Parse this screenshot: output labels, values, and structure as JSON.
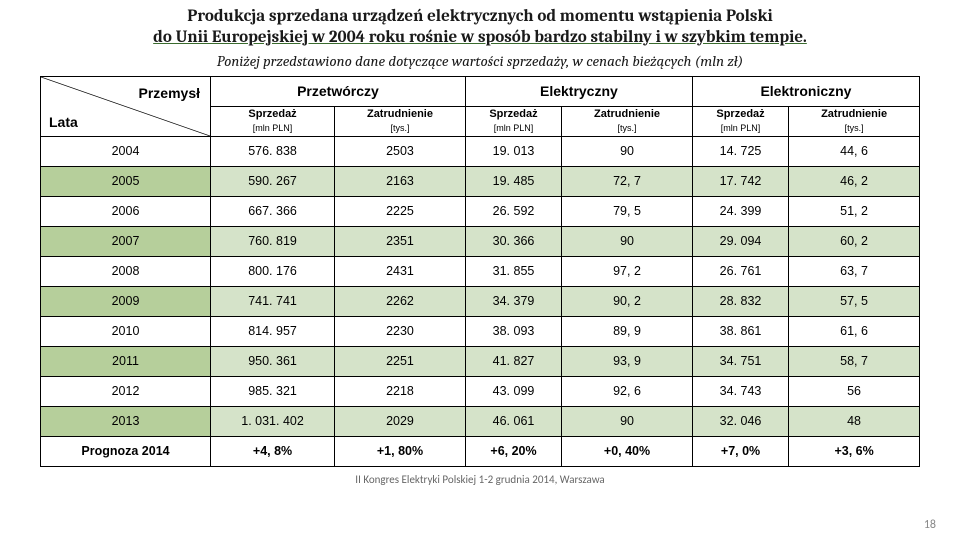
{
  "title_line1": "Produkcja sprzedana urządzeń elektrycznych od momentu wstąpienia Polski",
  "title_line2": "do Unii Europejskiej w 2004 roku rośnie w sposób bardzo stabilny i w szybkim tempie.",
  "subtitle": "Poniżej przedstawiono dane dotyczące wartości sprzedaży, w cenach bieżących (mln zł)",
  "diag_top": "Przemysł",
  "diag_bot": "Lata",
  "groups": [
    "Przetwórczy",
    "Elektryczny",
    "Elektroniczny"
  ],
  "sub_sales": "Sprzedaż",
  "sub_emp": "Zatrudnienie",
  "unit_sales": "[mln PLN]",
  "unit_emp": "[tys.]",
  "rows": [
    {
      "y": "2004",
      "v": [
        "576. 838",
        "2503",
        "19. 013",
        "90",
        "14. 725",
        "44, 6"
      ]
    },
    {
      "y": "2005",
      "v": [
        "590. 267",
        "2163",
        "19. 485",
        "72, 7",
        "17. 742",
        "46, 2"
      ]
    },
    {
      "y": "2006",
      "v": [
        "667. 366",
        "2225",
        "26. 592",
        "79, 5",
        "24. 399",
        "51, 2"
      ]
    },
    {
      "y": "2007",
      "v": [
        "760. 819",
        "2351",
        "30. 366",
        "90",
        "29. 094",
        "60, 2"
      ]
    },
    {
      "y": "2008",
      "v": [
        "800. 176",
        "2431",
        "31. 855",
        "97, 2",
        "26. 761",
        "63, 7"
      ]
    },
    {
      "y": "2009",
      "v": [
        "741. 741",
        "2262",
        "34. 379",
        "90, 2",
        "28. 832",
        "57, 5"
      ]
    },
    {
      "y": "2010",
      "v": [
        "814. 957",
        "2230",
        "38. 093",
        "89, 9",
        "38. 861",
        "61, 6"
      ]
    },
    {
      "y": "2011",
      "v": [
        "950. 361",
        "2251",
        "41. 827",
        "93, 9",
        "34. 751",
        "58, 7"
      ]
    },
    {
      "y": "2012",
      "v": [
        "985. 321",
        "2218",
        "43. 099",
        "92, 6",
        "34. 743",
        "56"
      ]
    },
    {
      "y": "2013",
      "v": [
        "1. 031. 402",
        "2029",
        "46. 061",
        "90",
        "32. 046",
        "48"
      ]
    }
  ],
  "forecast_label": "Prognoza 2014",
  "forecast": [
    "+4, 8%",
    "+1, 80%",
    "+6, 20%",
    "+0, 40%",
    "+7, 0%",
    "+3, 6%"
  ],
  "footer": "II Kongres Elektryki Polskiej 1-2 grudnia 2014, Warszawa",
  "page": "18",
  "colors": {
    "row_alt": "#d5e3c9",
    "year_alt": "#b6cf9b",
    "underline": "#3a6b2e"
  }
}
